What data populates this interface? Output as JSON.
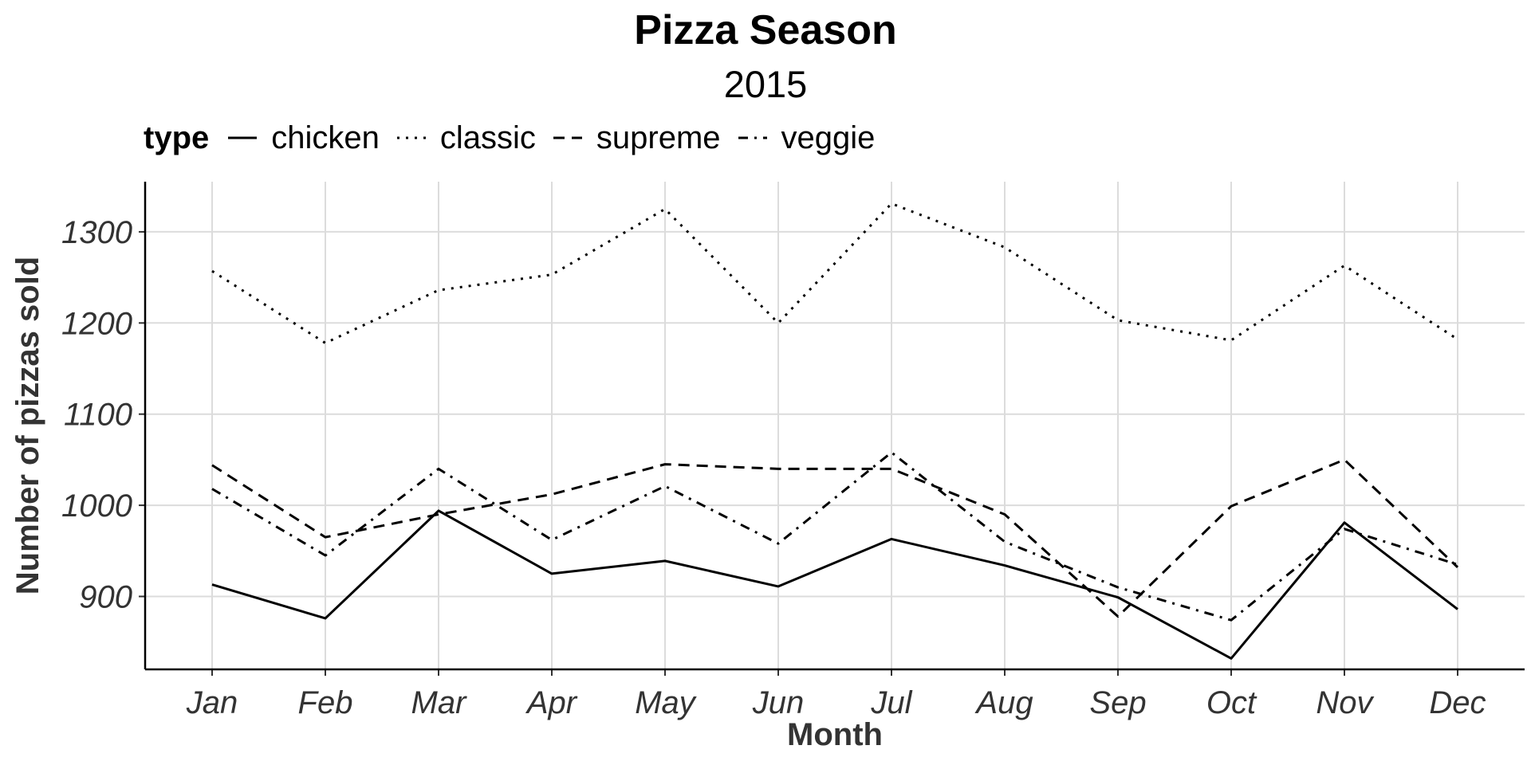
{
  "chart_data": {
    "type": "line",
    "title": "Pizza Season",
    "subtitle": "2015",
    "xlabel": "Month",
    "ylabel": "Number of pizzas sold",
    "legend_title": "type",
    "legend_position": "top-left",
    "categories": [
      "Jan",
      "Feb",
      "Mar",
      "Apr",
      "May",
      "Jun",
      "Jul",
      "Aug",
      "Sep",
      "Oct",
      "Nov",
      "Dec"
    ],
    "ylim": [
      820,
      1355
    ],
    "yticks": [
      900,
      1000,
      1100,
      1200,
      1300
    ],
    "grid": true,
    "series": [
      {
        "name": "chicken",
        "dash": "solid",
        "values": [
          913,
          876,
          994,
          925,
          939,
          911,
          963,
          934,
          899,
          832,
          981,
          886
        ]
      },
      {
        "name": "classic",
        "dash": "dotted",
        "values": [
          1257,
          1178,
          1236,
          1253,
          1325,
          1200,
          1331,
          1283,
          1203,
          1181,
          1263,
          1182
        ]
      },
      {
        "name": "supreme",
        "dash": "dashed",
        "values": [
          1044,
          965,
          990,
          1012,
          1045,
          1040,
          1040,
          990,
          878,
          999,
          1050,
          932
        ]
      },
      {
        "name": "veggie",
        "dash": "dotdash",
        "values": [
          1018,
          945,
          1040,
          962,
          1021,
          958,
          1058,
          960,
          910,
          874,
          974,
          935
        ]
      }
    ]
  }
}
